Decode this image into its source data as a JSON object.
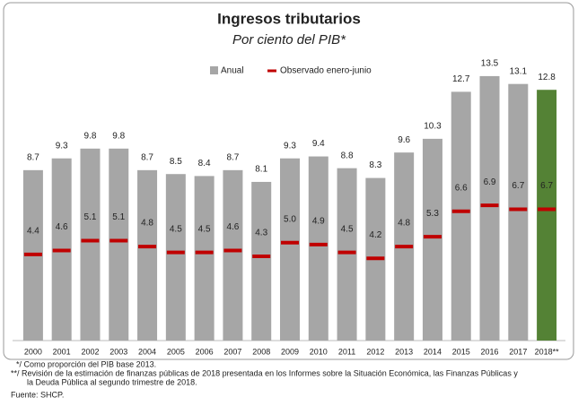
{
  "chart_data": {
    "type": "bar",
    "title": "Ingresos tributarios",
    "subtitle": "Por ciento del PIB*",
    "categories": [
      "2000",
      "2001",
      "2002",
      "2003",
      "2004",
      "2005",
      "2006",
      "2007",
      "2008",
      "2009",
      "2010",
      "2011",
      "2012",
      "2013",
      "2014",
      "2015",
      "2016",
      "2017",
      "2018**"
    ],
    "series": [
      {
        "name": "Anual",
        "color": "#a6a6a6",
        "colors": [
          "#a6a6a6",
          "#a6a6a6",
          "#a6a6a6",
          "#a6a6a6",
          "#a6a6a6",
          "#a6a6a6",
          "#a6a6a6",
          "#a6a6a6",
          "#a6a6a6",
          "#a6a6a6",
          "#a6a6a6",
          "#a6a6a6",
          "#a6a6a6",
          "#a6a6a6",
          "#a6a6a6",
          "#a6a6a6",
          "#a6a6a6",
          "#a6a6a6",
          "#548235"
        ],
        "values": [
          8.7,
          9.3,
          9.8,
          9.8,
          8.7,
          8.5,
          8.4,
          8.7,
          8.1,
          9.3,
          9.4,
          8.8,
          8.3,
          9.6,
          10.3,
          12.7,
          13.5,
          13.1,
          12.8
        ]
      },
      {
        "name": "Observado enero-junio",
        "color": "#c00000",
        "values": [
          4.4,
          4.6,
          5.1,
          5.1,
          4.8,
          4.5,
          4.5,
          4.6,
          4.3,
          5.0,
          4.9,
          4.5,
          4.2,
          4.8,
          5.3,
          6.6,
          6.9,
          6.7,
          6.7
        ],
        "value_labels": [
          "4.4",
          "4.6",
          "5.1",
          "5.1",
          "4.8",
          "4.5",
          "4.5",
          "4.6",
          "4.3",
          "5.0",
          "4.9",
          "4.5",
          "4.2",
          "4.8",
          "5.3",
          "6.6",
          "6.9",
          "6.7",
          "6.7"
        ]
      }
    ],
    "ylim": [
      0,
      14
    ],
    "notes": [
      "*/ Como proporción del PIB base 2013.",
      "**/ Revisión de la estimación de finanzas públicas de 2018 presentada en los Informes sobre la Situación Económica, las Finanzas Públicas y",
      "la Deuda Pública al segundo trimestre de 2018.",
      "Fuente: SHCP."
    ]
  }
}
